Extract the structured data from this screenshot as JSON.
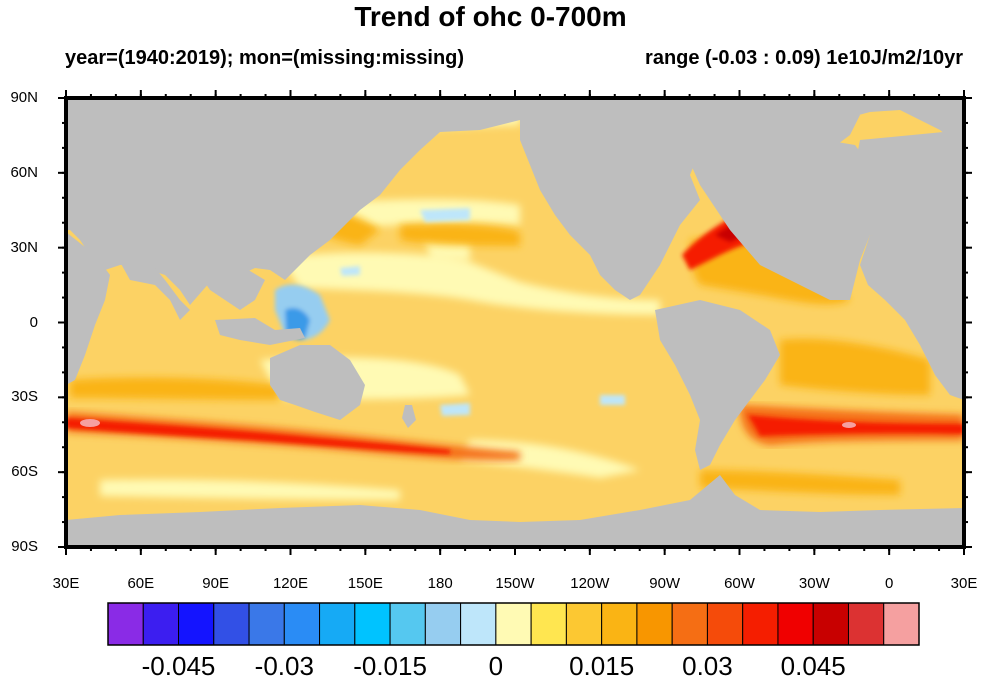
{
  "title": "Trend of ohc 0-700m",
  "subtitle_left": "year=(1940:2019); mon=(missing:missing)",
  "subtitle_right": "range (-0.03 : 0.09) 1e10J/m2/10yr",
  "lat_ticks": [
    "90N",
    "60N",
    "30N",
    "0",
    "30S",
    "60S",
    "90S"
  ],
  "lon_ticks": [
    "30E",
    "60E",
    "90E",
    "120E",
    "150E",
    "180",
    "150W",
    "120W",
    "90W",
    "60W",
    "30W",
    "0",
    "30E"
  ],
  "colorbar": {
    "colors": [
      "#8a2be6",
      "#3c1ef0",
      "#1414ff",
      "#3250e6",
      "#3a78e8",
      "#2a8cf5",
      "#16aaf5",
      "#00c3ff",
      "#55c8f0",
      "#96cdf0",
      "#bee6fa",
      "#fffab4",
      "#ffe650",
      "#fcc832",
      "#fab414",
      "#f89600",
      "#f56e14",
      "#f54b0a",
      "#f51e00",
      "#f00000",
      "#c80000",
      "#dc3232",
      "#f5a0a0"
    ],
    "labels": [
      "-0.045",
      "-0.03",
      "-0.015",
      "0",
      "0.015",
      "0.03",
      "0.045"
    ]
  },
  "colors": {
    "land": "#bebebe",
    "ocean_base": "#fcd264"
  }
}
